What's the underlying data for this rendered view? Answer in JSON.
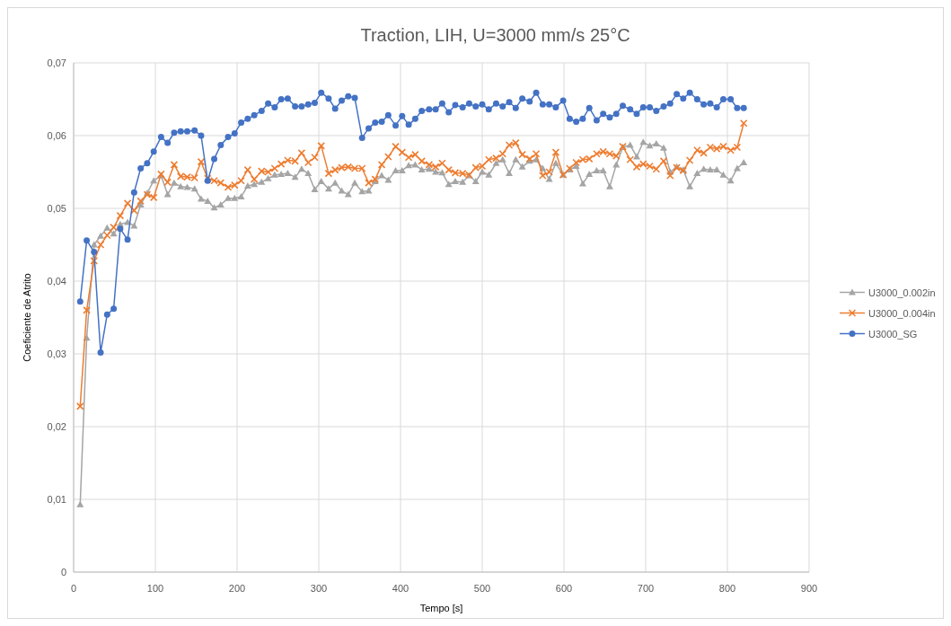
{
  "chart_data": {
    "type": "line",
    "title": "Traction, LIH, U=3000 mm/s 25°C",
    "xlabel": "Tempo [s]",
    "ylabel": "Coeficiente de Atrito",
    "x": [
      8,
      16,
      25,
      33,
      41,
      49,
      57,
      66,
      74,
      82,
      90,
      98,
      107,
      115,
      123,
      131,
      139,
      148,
      156,
      164,
      172,
      180,
      189,
      197,
      205,
      213,
      221,
      230,
      238,
      246,
      254,
      262,
      271,
      279,
      287,
      295,
      303,
      312,
      320,
      328,
      336,
      344,
      353,
      361,
      369,
      377,
      385,
      394,
      402,
      410,
      418,
      426,
      435,
      443,
      451,
      459,
      467,
      476,
      484,
      492,
      500,
      508,
      517,
      525,
      533,
      541,
      549,
      558,
      566,
      574,
      582,
      590,
      599,
      607,
      615,
      623,
      631,
      640,
      648,
      656,
      664,
      672,
      681,
      689,
      697,
      705,
      713,
      722,
      730,
      738,
      746,
      754,
      763,
      771,
      779,
      787,
      795,
      804,
      812,
      820
    ],
    "series": [
      {
        "name": "U3000_0.002in",
        "color": "#a5a5a5",
        "marker": "triangle",
        "values": [
          0.0093,
          0.0322,
          0.045,
          0.0462,
          0.0473,
          0.0465,
          0.0478,
          0.0481,
          0.0476,
          0.0505,
          0.0521,
          0.0538,
          0.0545,
          0.0519,
          0.0535,
          0.053,
          0.0529,
          0.0527,
          0.0513,
          0.051,
          0.0501,
          0.0505,
          0.0514,
          0.0514,
          0.0516,
          0.0531,
          0.0533,
          0.0536,
          0.0541,
          0.0546,
          0.0547,
          0.0548,
          0.0543,
          0.0554,
          0.0548,
          0.0526,
          0.0537,
          0.0527,
          0.0535,
          0.0524,
          0.0519,
          0.0535,
          0.0523,
          0.0524,
          0.0537,
          0.0545,
          0.0539,
          0.0552,
          0.0552,
          0.0559,
          0.056,
          0.0553,
          0.0554,
          0.055,
          0.0549,
          0.0533,
          0.0537,
          0.0536,
          0.0545,
          0.0537,
          0.055,
          0.0546,
          0.0562,
          0.0567,
          0.0548,
          0.0567,
          0.0557,
          0.0565,
          0.0567,
          0.0555,
          0.054,
          0.0562,
          0.0546,
          0.0553,
          0.0558,
          0.0534,
          0.0547,
          0.0552,
          0.0552,
          0.053,
          0.056,
          0.0584,
          0.0587,
          0.0571,
          0.0591,
          0.0586,
          0.0589,
          0.0583,
          0.055,
          0.0557,
          0.0553,
          0.053,
          0.0548,
          0.0554,
          0.0553,
          0.0553,
          0.0546,
          0.0538,
          0.0555,
          0.0563
        ]
      },
      {
        "name": "U3000_0.004in",
        "color": "#ed7d31",
        "marker": "cross",
        "values": [
          0.0228,
          0.036,
          0.0428,
          0.045,
          0.0463,
          0.0474,
          0.049,
          0.0507,
          0.0497,
          0.051,
          0.0519,
          0.0515,
          0.0547,
          0.0536,
          0.056,
          0.0544,
          0.0543,
          0.0542,
          0.0564,
          0.0541,
          0.0538,
          0.0535,
          0.0529,
          0.0532,
          0.0538,
          0.0553,
          0.054,
          0.0551,
          0.055,
          0.0555,
          0.0561,
          0.0566,
          0.0565,
          0.0576,
          0.0563,
          0.057,
          0.0586,
          0.0548,
          0.0553,
          0.0556,
          0.0557,
          0.0555,
          0.0555,
          0.0535,
          0.054,
          0.056,
          0.0571,
          0.0585,
          0.0577,
          0.057,
          0.0574,
          0.0565,
          0.056,
          0.0557,
          0.0562,
          0.0553,
          0.0549,
          0.0548,
          0.0546,
          0.0556,
          0.0558,
          0.0567,
          0.0569,
          0.0575,
          0.0587,
          0.059,
          0.0574,
          0.0568,
          0.0575,
          0.0545,
          0.055,
          0.0577,
          0.0546,
          0.0555,
          0.0563,
          0.0567,
          0.0568,
          0.0575,
          0.0578,
          0.0575,
          0.0572,
          0.0585,
          0.0567,
          0.0557,
          0.0561,
          0.0558,
          0.0554,
          0.0565,
          0.0545,
          0.0556,
          0.0552,
          0.0566,
          0.058,
          0.0576,
          0.0584,
          0.0582,
          0.0585,
          0.058,
          0.0584,
          0.0617
        ]
      },
      {
        "name": "U3000_SG",
        "color": "#4472c4",
        "marker": "circle",
        "values": [
          0.0372,
          0.0456,
          0.044,
          0.0302,
          0.0354,
          0.0362,
          0.0472,
          0.0457,
          0.0522,
          0.0555,
          0.0562,
          0.0578,
          0.0598,
          0.059,
          0.0604,
          0.0606,
          0.0606,
          0.0607,
          0.06,
          0.0538,
          0.0568,
          0.0587,
          0.0598,
          0.0603,
          0.0618,
          0.0623,
          0.0628,
          0.0634,
          0.0644,
          0.0639,
          0.065,
          0.0651,
          0.064,
          0.064,
          0.0643,
          0.0645,
          0.0659,
          0.0651,
          0.0637,
          0.0648,
          0.0654,
          0.0652,
          0.0597,
          0.061,
          0.0618,
          0.0619,
          0.0628,
          0.0614,
          0.0627,
          0.0615,
          0.0623,
          0.0634,
          0.0636,
          0.0636,
          0.0644,
          0.0632,
          0.0642,
          0.0639,
          0.0644,
          0.064,
          0.0643,
          0.0636,
          0.0644,
          0.064,
          0.0646,
          0.0638,
          0.0651,
          0.0647,
          0.0659,
          0.0643,
          0.0643,
          0.0639,
          0.0648,
          0.0623,
          0.0619,
          0.0623,
          0.0638,
          0.0621,
          0.063,
          0.0625,
          0.063,
          0.0641,
          0.0636,
          0.063,
          0.0639,
          0.0639,
          0.0634,
          0.064,
          0.0644,
          0.0657,
          0.0651,
          0.0659,
          0.065,
          0.0643,
          0.0644,
          0.0639,
          0.065,
          0.065,
          0.0638,
          0.0638
        ]
      }
    ],
    "xlim": [
      0,
      900
    ],
    "xticks": [
      0,
      100,
      200,
      300,
      400,
      500,
      600,
      700,
      800,
      900
    ],
    "ylim": [
      0,
      0.07
    ],
    "yticks": [
      0,
      {
        "value": 0.01,
        "label": "0,01"
      },
      {
        "value": 0.02,
        "label": "0,02"
      },
      {
        "value": 0.03,
        "label": "0,03"
      },
      {
        "value": 0.04,
        "label": "0,04"
      },
      {
        "value": 0.05,
        "label": "0,05"
      },
      {
        "value": 0.06,
        "label": "0,06"
      },
      {
        "value": 0.07,
        "label": "0,07"
      }
    ],
    "grid": true,
    "legend": "right",
    "line_style": "solid"
  }
}
